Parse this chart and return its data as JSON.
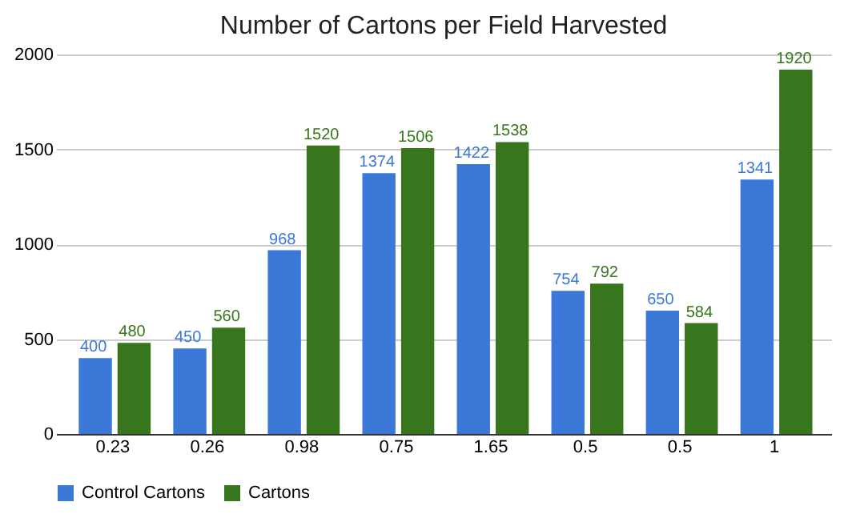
{
  "chart_data": {
    "type": "bar",
    "title": "Number of Cartons per Field Harvested",
    "categories": [
      "0.23",
      "0.26",
      "0.98",
      "0.75",
      "1.65",
      "0.5",
      "0.5",
      "1"
    ],
    "series": [
      {
        "name": "Control Cartons",
        "color": "#3c78d8",
        "values": [
          400,
          450,
          968,
          1374,
          1422,
          754,
          650,
          1341
        ]
      },
      {
        "name": "Cartons",
        "color": "#38761d",
        "values": [
          480,
          560,
          1520,
          1506,
          1538,
          792,
          584,
          1920
        ]
      }
    ],
    "ylim": [
      0,
      2000
    ],
    "yticks": [
      0,
      500,
      1000,
      1500,
      2000
    ],
    "grid": "y",
    "legend": "bottom",
    "data_labels": true
  }
}
